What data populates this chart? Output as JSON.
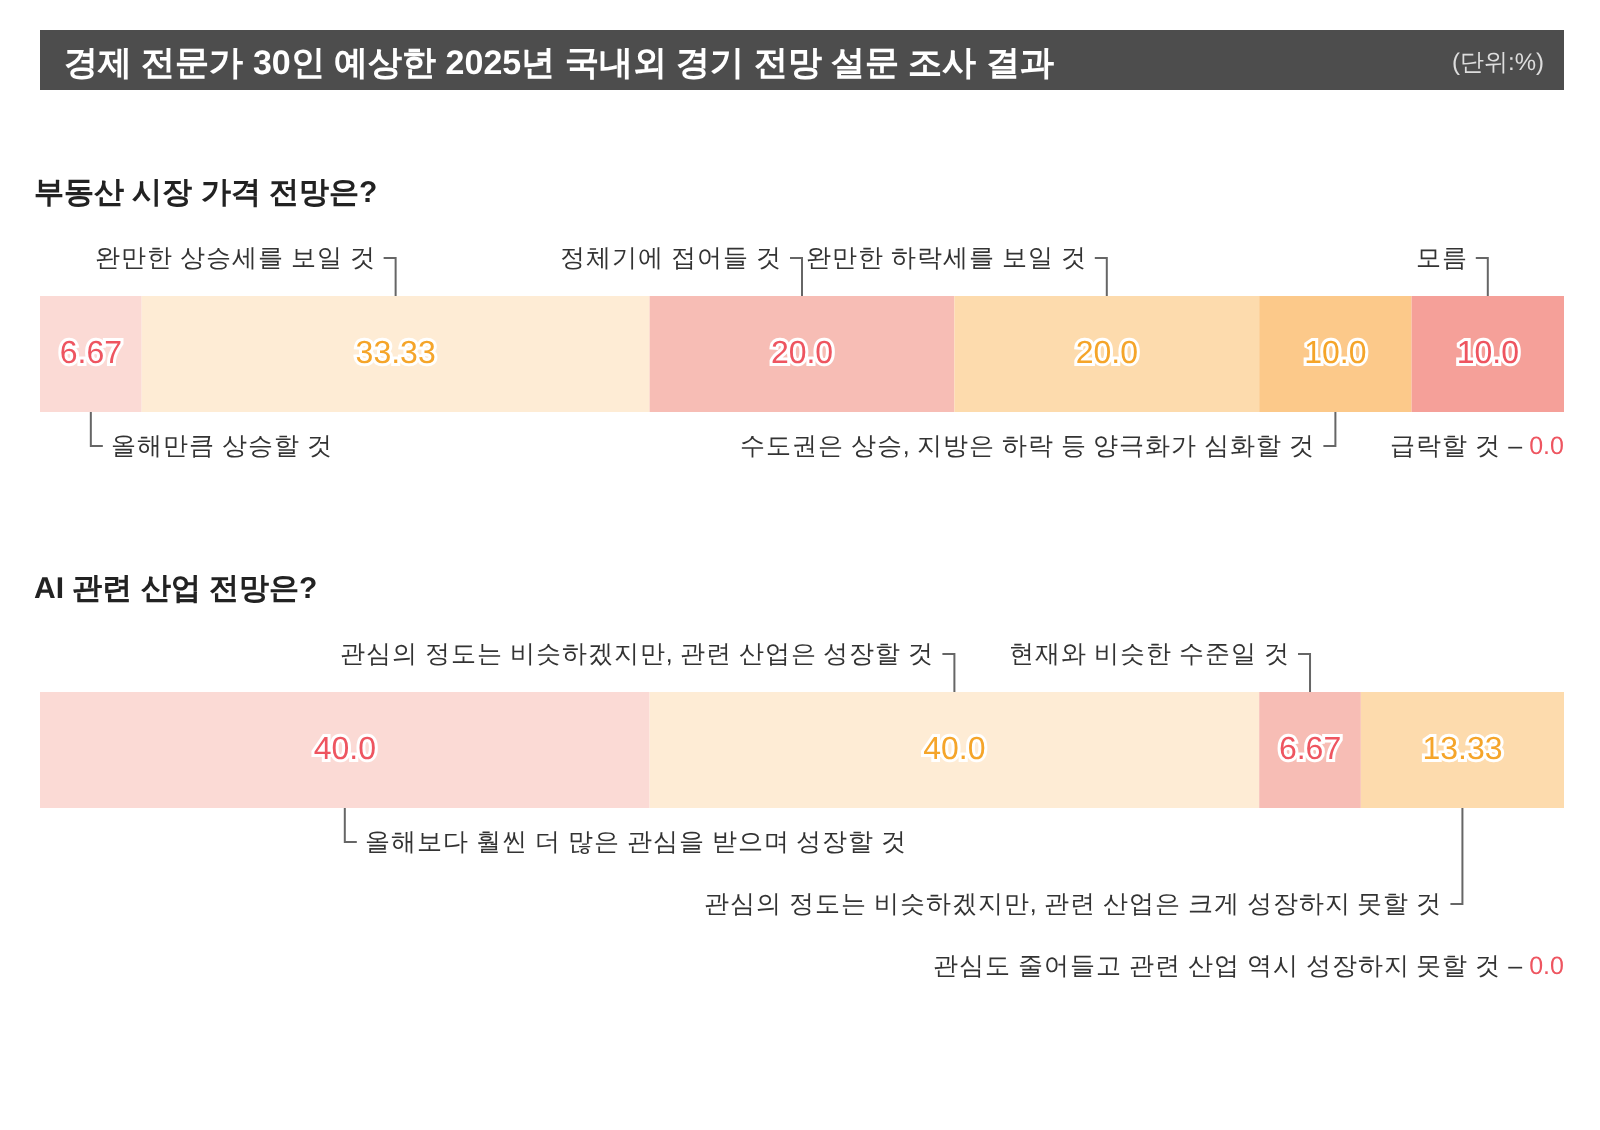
{
  "chart_data": [
    {
      "type": "bar",
      "orientation": "horizontal",
      "stacked": true,
      "title": "경제 전문가 30인 예상한 2025년 국내외 경기 전망 설문 조사 결과",
      "subtitle": "부동산 시장 가격 전망은?",
      "annotations": [
        "(단위:%)",
        "급락할 것 – 0.0"
      ],
      "categories": [
        null
      ],
      "xlim": [
        0,
        100
      ],
      "tick_labels": false,
      "series": [
        {
          "name": "올해만큼 상승할 것",
          "color": "#fbdad5",
          "values": [
            6.67
          ],
          "value_labels": [
            "6.67"
          ]
        },
        {
          "name": "완만한 상승세를 보일 것",
          "color": "#feecd5",
          "values": [
            33.33
          ],
          "value_labels": [
            "33.33"
          ]
        },
        {
          "name": "정체기에 접어들 것",
          "color": "#f7bdb5",
          "values": [
            20
          ],
          "value_labels": [
            "20.0"
          ]
        },
        {
          "name": "완만한 하락세를 보일 것",
          "color": "#fddbad",
          "values": [
            20
          ],
          "value_labels": [
            "20.0"
          ]
        },
        {
          "name": "수도권은 상승, 지방은 하락 등 양극화가 심화할 것",
          "color": "#fcc98a",
          "values": [
            10
          ],
          "value_labels": [
            "10.0"
          ]
        },
        {
          "name": "모름",
          "color": "#f5a099",
          "values": [
            10
          ],
          "value_labels": [
            "10.0"
          ]
        }
      ]
    },
    {
      "type": "bar",
      "orientation": "horizontal",
      "stacked": true,
      "title": "AI 관련 산업 전망은?",
      "annotations": [
        "관심도 줄어들고 관련 산업 역시 성장하지 못할 것 – 0.0"
      ],
      "categories": [
        null
      ],
      "xlim": [
        0,
        100
      ],
      "tick_labels": false,
      "series": [
        {
          "name": "올해보다 훨씬 더 많은 관심을 받으며 성장할 것",
          "color": "#fbdad5",
          "values": [
            40
          ],
          "value_labels": [
            "40.0"
          ]
        },
        {
          "name": "관심의 정도는 비슷하겠지만, 관련 산업은 성장할 것",
          "color": "#feecd5",
          "values": [
            40
          ],
          "value_labels": [
            "40.0"
          ]
        },
        {
          "name": "현재와 비슷한 수준일 것",
          "color": "#f7bdb5",
          "values": [
            6.67
          ],
          "value_labels": [
            "6.67"
          ]
        },
        {
          "name": "관심의 정도는 비슷하겠지만, 관련 산업은 크게 성장하지 못할 것",
          "color": "#fddbad",
          "values": [
            13.33
          ],
          "value_labels": [
            "13.33"
          ]
        }
      ]
    }
  ]
}
